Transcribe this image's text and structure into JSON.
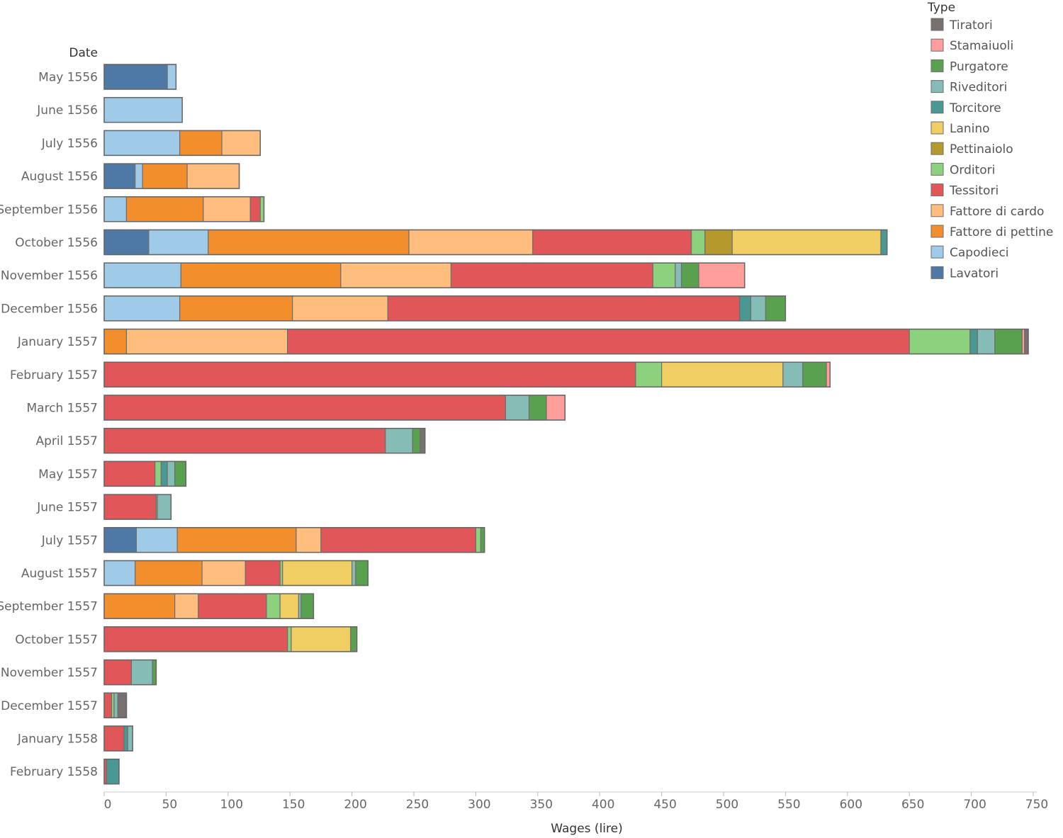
{
  "chart_data": {
    "type": "bar",
    "orientation": "horizontal",
    "stacked": true,
    "title": "",
    "xlabel": "Wages (lire)",
    "ylabel": "Date",
    "xlim": [
      0,
      750
    ],
    "xticks": [
      0,
      50,
      100,
      150,
      200,
      250,
      300,
      350,
      400,
      450,
      500,
      550,
      600,
      650,
      700,
      750
    ],
    "grid": false,
    "legend_title": "Type",
    "legend_position": "top-right",
    "categories": [
      "May 1556",
      "June 1556",
      "July 1556",
      "August 1556",
      "September 1556",
      "October 1556",
      "November 1556",
      "December 1556",
      "January 1557",
      "February 1557",
      "March 1557",
      "April 1557",
      "May 1557",
      "June 1557",
      "July 1557",
      "August 1557",
      "September 1557",
      "October 1557",
      "November 1557",
      "December 1557",
      "January 1558",
      "February 1558"
    ],
    "legend_order": [
      "Tiratori",
      "Stamaiuoli",
      "Purgatore",
      "Riveditori",
      "Torcitore",
      "Lanino",
      "Pettinaiolo",
      "Orditori",
      "Tessitori",
      "Fattore di cardo",
      "Fattore di pettine",
      "Capodieci",
      "Lavatori"
    ],
    "series": [
      {
        "name": "Lavatori",
        "color": "#4e79a7",
        "values": [
          51,
          0,
          0,
          25,
          0,
          36,
          0,
          0,
          0,
          0,
          0,
          0,
          0,
          0,
          26,
          0,
          0,
          0,
          0,
          0,
          0,
          0
        ]
      },
      {
        "name": "Capodieci",
        "color": "#a0cbe8",
        "values": [
          7,
          63,
          61,
          6,
          18,
          48,
          62,
          61,
          0,
          0,
          0,
          0,
          0,
          0,
          33,
          25,
          0,
          0,
          0,
          0,
          0,
          0
        ]
      },
      {
        "name": "Fattore di pettine",
        "color": "#f28e2b",
        "values": [
          0,
          0,
          34,
          36,
          62,
          162,
          129,
          91,
          18,
          0,
          0,
          0,
          0,
          0,
          96,
          54,
          57,
          0,
          0,
          0,
          0,
          0
        ]
      },
      {
        "name": "Fattore di cardo",
        "color": "#ffbe7d",
        "values": [
          0,
          0,
          31,
          42,
          38,
          100,
          89,
          77,
          130,
          0,
          0,
          0,
          0,
          0,
          20,
          35,
          19,
          0,
          0,
          0,
          0,
          0
        ]
      },
      {
        "name": "Tessitori",
        "color": "#e15759",
        "values": [
          0,
          0,
          0,
          0,
          8,
          128,
          163,
          284,
          502,
          429,
          324,
          227,
          41,
          42,
          125,
          28,
          55,
          148,
          22,
          6,
          16,
          2
        ]
      },
      {
        "name": "Orditori",
        "color": "#8cd17d",
        "values": [
          0,
          0,
          0,
          0,
          3,
          11,
          18,
          0,
          49,
          21,
          0,
          0,
          5,
          1,
          4,
          2,
          11,
          3,
          0,
          2,
          0,
          0
        ]
      },
      {
        "name": "Pettinaiolo",
        "color": "#b6992d",
        "values": [
          0,
          0,
          0,
          0,
          0,
          22,
          0,
          0,
          0,
          0,
          0,
          0,
          0,
          0,
          0,
          0,
          0,
          0,
          0,
          0,
          0,
          0
        ]
      },
      {
        "name": "Lanino",
        "color": "#f1ce63",
        "values": [
          0,
          0,
          0,
          0,
          0,
          120,
          0,
          0,
          0,
          98,
          0,
          0,
          0,
          0,
          0,
          56,
          15,
          48,
          0,
          0,
          0,
          0
        ]
      },
      {
        "name": "Torcitore",
        "color": "#499894",
        "values": [
          0,
          0,
          0,
          0,
          0,
          5,
          0,
          9,
          6,
          0,
          0,
          0,
          5,
          0,
          0,
          0,
          0,
          0,
          0,
          0,
          3,
          10
        ]
      },
      {
        "name": "Riveditori",
        "color": "#86bcb6",
        "values": [
          0,
          0,
          0,
          0,
          0,
          0,
          5,
          12,
          14,
          16,
          19,
          22,
          6,
          11,
          0,
          3,
          2,
          0,
          17,
          3,
          4,
          0
        ]
      },
      {
        "name": "Purgatore",
        "color": "#59a14f",
        "values": [
          0,
          0,
          0,
          0,
          0,
          0,
          14,
          16,
          22,
          19,
          14,
          6,
          9,
          0,
          3,
          10,
          10,
          5,
          3,
          0,
          0,
          0
        ]
      },
      {
        "name": "Stamaiuoli",
        "color": "#ff9d9a",
        "values": [
          0,
          0,
          0,
          0,
          0,
          0,
          37,
          0,
          2,
          3,
          15,
          0,
          0,
          0,
          0,
          0,
          0,
          0,
          0,
          0,
          0,
          0
        ]
      },
      {
        "name": "Tiratori",
        "color": "#79706e",
        "values": [
          0,
          0,
          0,
          0,
          0,
          0,
          0,
          0,
          3,
          0,
          0,
          4,
          0,
          0,
          0,
          0,
          0,
          0,
          0,
          7,
          0,
          0
        ]
      }
    ]
  }
}
